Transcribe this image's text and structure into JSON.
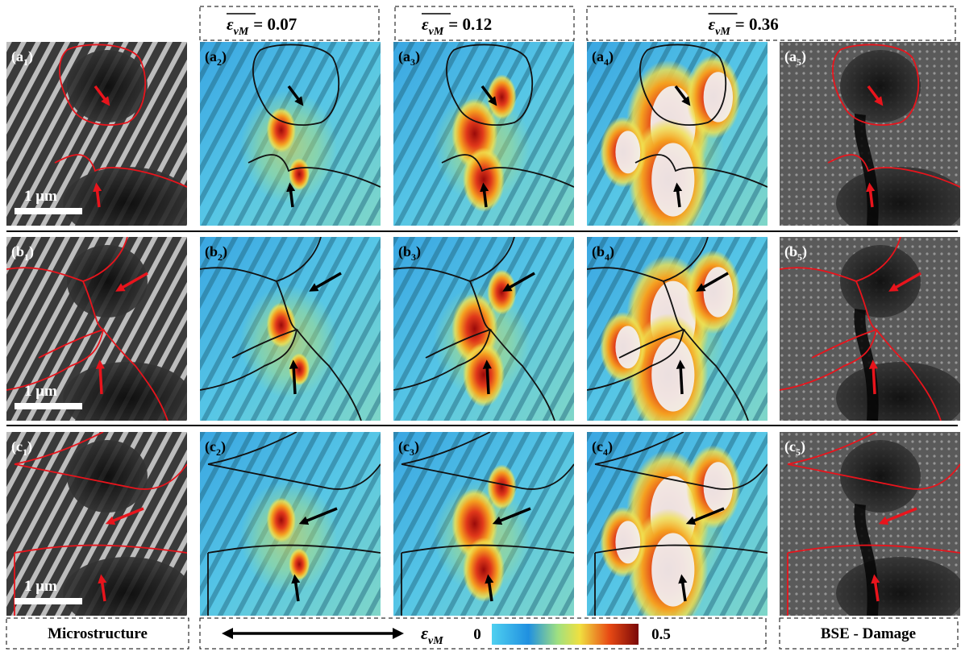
{
  "headers": [
    {
      "symbol": "ε",
      "subscript": "vM",
      "value": "= 0.07"
    },
    {
      "symbol": "ε",
      "subscript": "vM",
      "value": "= 0.12"
    },
    {
      "symbol": "ε",
      "subscript": "vM",
      "value": "= 0.36"
    }
  ],
  "rows": [
    {
      "scale_bar": "1 μm",
      "panels": [
        {
          "prefix": "(a",
          "subscript": "1",
          "suffix": ")"
        },
        {
          "prefix": "(a",
          "subscript": "2",
          "suffix": ")"
        },
        {
          "prefix": "(a",
          "subscript": "3",
          "suffix": ")"
        },
        {
          "prefix": "(a",
          "subscript": "4",
          "suffix": ")"
        },
        {
          "prefix": "(a",
          "subscript": "5",
          "suffix": ")"
        }
      ]
    },
    {
      "scale_bar": "1 μm",
      "panels": [
        {
          "prefix": "(b",
          "subscript": "1",
          "suffix": ")"
        },
        {
          "prefix": "(b",
          "subscript": "2",
          "suffix": ")"
        },
        {
          "prefix": "(b",
          "subscript": "3",
          "suffix": ")"
        },
        {
          "prefix": "(b",
          "subscript": "4",
          "suffix": ")"
        },
        {
          "prefix": "(b",
          "subscript": "5",
          "suffix": ")"
        }
      ]
    },
    {
      "scale_bar": "1 μm",
      "panels": [
        {
          "prefix": "(c",
          "subscript": "1",
          "suffix": ")"
        },
        {
          "prefix": "(c",
          "subscript": "2",
          "suffix": ")"
        },
        {
          "prefix": "(c",
          "subscript": "3",
          "suffix": ")"
        },
        {
          "prefix": "(c",
          "subscript": "4",
          "suffix": ")"
        },
        {
          "prefix": "(c",
          "subscript": "5",
          "suffix": ")"
        }
      ]
    }
  ],
  "footer": {
    "left": "Microstructure",
    "symbol": "ε",
    "subscript": "vM",
    "colorbar": {
      "min": 0,
      "max": 0.5
    },
    "right": "BSE - Damage"
  }
}
